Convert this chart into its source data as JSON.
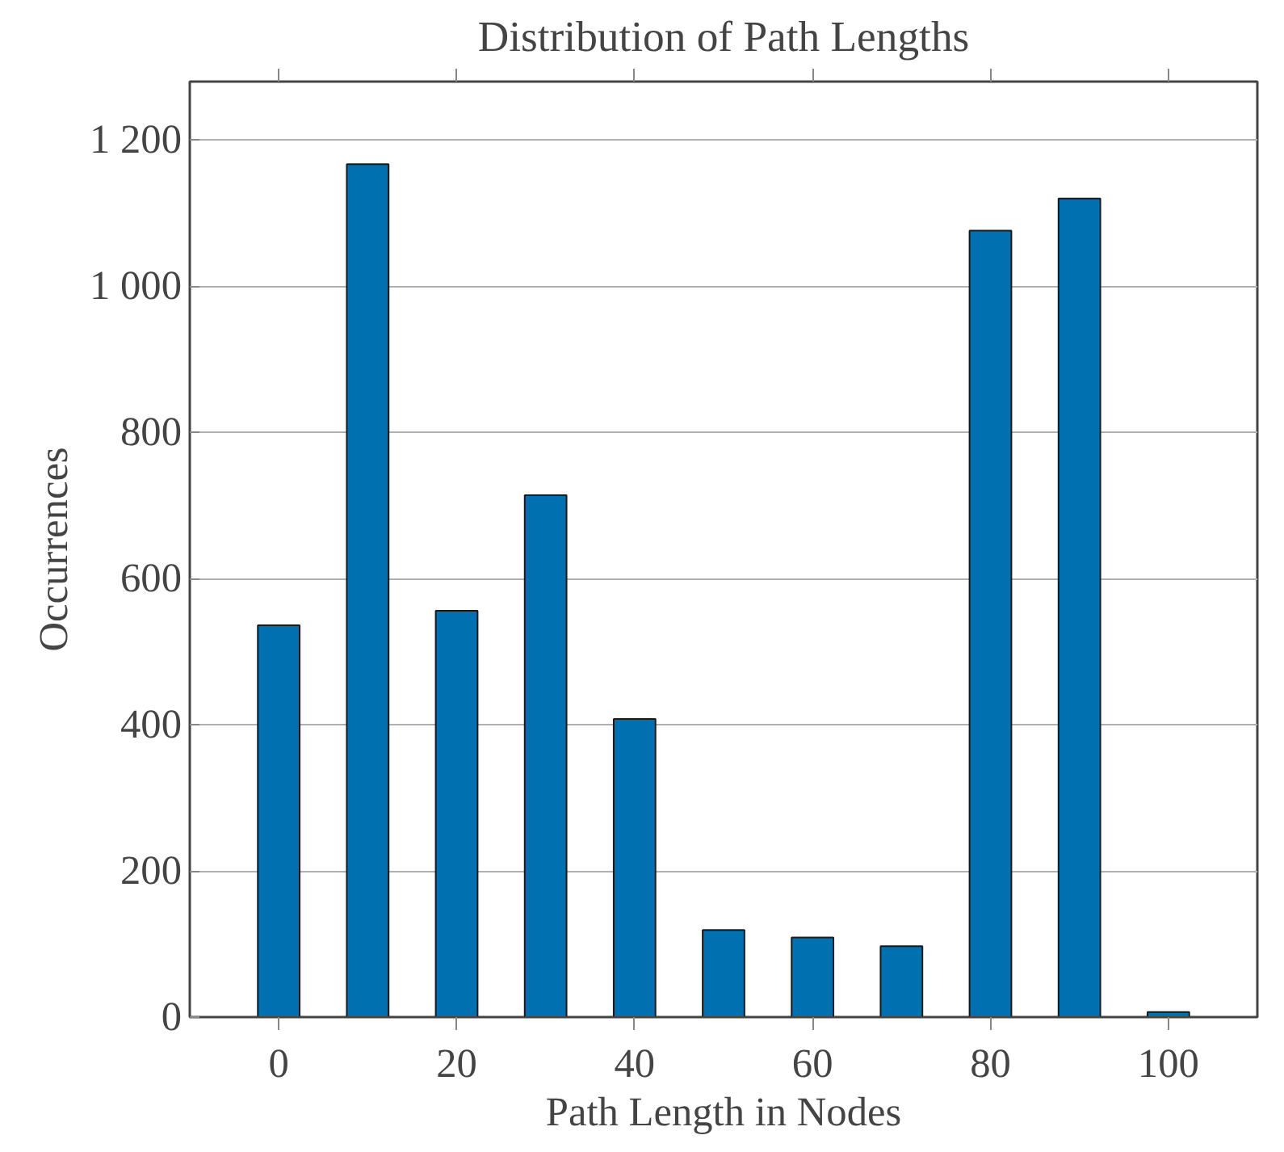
{
  "chart_data": {
    "type": "bar",
    "title": "Distribution of Path Lengths",
    "xlabel": "Path Length in Nodes",
    "ylabel": "Occurrences",
    "x": [
      0,
      10,
      20,
      30,
      40,
      50,
      60,
      70,
      80,
      90,
      100
    ],
    "values": [
      536,
      1167,
      556,
      714,
      408,
      119,
      109,
      97,
      1076,
      1120,
      7
    ],
    "color": "#0070b0",
    "xlim": [
      -10,
      110
    ],
    "xticks": [
      0,
      20,
      40,
      60,
      80,
      100
    ],
    "ylim": [
      0,
      1280
    ],
    "yticks": [
      0,
      200,
      400,
      600,
      800,
      {
        "value": 1000,
        "label": "1 000"
      },
      {
        "value": 1200,
        "label": "1 200"
      }
    ],
    "grid": "y"
  }
}
